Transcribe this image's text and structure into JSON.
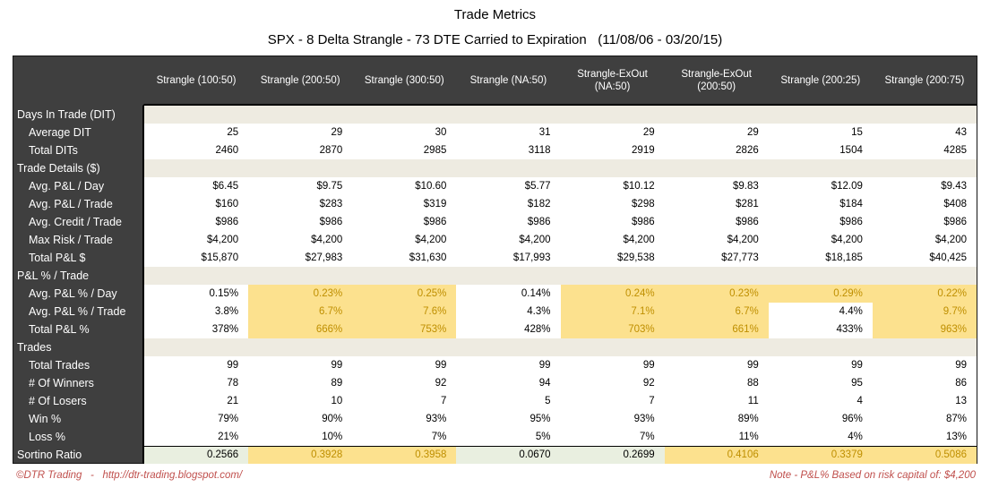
{
  "title": "Trade Metrics",
  "subtitle": "SPX - 8 Delta Strangle - 73 DTE Carried to Expiration   (11/08/06 - 03/20/15)",
  "columns": [
    "Strangle (100:50)",
    "Strangle (200:50)",
    "Strangle (300:50)",
    "Strangle (NA:50)",
    "Strangle-ExOut (NA:50)",
    "Strangle-ExOut (200:50)",
    "Strangle (200:25)",
    "Strangle (200:75)"
  ],
  "rows": [
    {
      "type": "section",
      "label": "Days In Trade (DIT)"
    },
    {
      "type": "data",
      "label": "Average DIT",
      "values": [
        "25",
        "29",
        "30",
        "31",
        "29",
        "29",
        "15",
        "43"
      ]
    },
    {
      "type": "data",
      "label": "Total DITs",
      "values": [
        "2460",
        "2870",
        "2985",
        "3118",
        "2919",
        "2826",
        "1504",
        "4285"
      ]
    },
    {
      "type": "section",
      "label": "Trade Details ($)"
    },
    {
      "type": "data",
      "label": "Avg. P&L / Day",
      "values": [
        "$6.45",
        "$9.75",
        "$10.60",
        "$5.77",
        "$10.12",
        "$9.83",
        "$12.09",
        "$9.43"
      ]
    },
    {
      "type": "data",
      "label": "Avg. P&L / Trade",
      "values": [
        "$160",
        "$283",
        "$319",
        "$182",
        "$298",
        "$281",
        "$184",
        "$408"
      ]
    },
    {
      "type": "data",
      "label": "Avg. Credit / Trade",
      "values": [
        "$986",
        "$986",
        "$986",
        "$986",
        "$986",
        "$986",
        "$986",
        "$986"
      ]
    },
    {
      "type": "data",
      "label": "Max Risk / Trade",
      "values": [
        "$4,200",
        "$4,200",
        "$4,200",
        "$4,200",
        "$4,200",
        "$4,200",
        "$4,200",
        "$4,200"
      ]
    },
    {
      "type": "data",
      "label": "Total P&L $",
      "values": [
        "$15,870",
        "$27,983",
        "$31,630",
        "$17,993",
        "$29,538",
        "$27,773",
        "$18,185",
        "$40,425"
      ]
    },
    {
      "type": "section",
      "label": "P&L % / Trade"
    },
    {
      "type": "data",
      "label": "Avg. P&L % / Day",
      "values": [
        "0.15%",
        "0.23%",
        "0.25%",
        "0.14%",
        "0.24%",
        "0.23%",
        "0.29%",
        "0.22%"
      ],
      "styles": [
        "p",
        "y",
        "y",
        "p",
        "y",
        "y",
        "y",
        "y"
      ]
    },
    {
      "type": "data",
      "label": "Avg. P&L % / Trade",
      "values": [
        "3.8%",
        "6.7%",
        "7.6%",
        "4.3%",
        "7.1%",
        "6.7%",
        "4.4%",
        "9.7%"
      ],
      "styles": [
        "p",
        "y",
        "y",
        "p",
        "y",
        "y",
        "p",
        "y"
      ]
    },
    {
      "type": "data",
      "label": "Total P&L %",
      "values": [
        "378%",
        "666%",
        "753%",
        "428%",
        "703%",
        "661%",
        "433%",
        "963%"
      ],
      "styles": [
        "p",
        "y",
        "y",
        "p",
        "y",
        "y",
        "p",
        "y"
      ]
    },
    {
      "type": "section",
      "label": "Trades"
    },
    {
      "type": "data",
      "label": "Total Trades",
      "values": [
        "99",
        "99",
        "99",
        "99",
        "99",
        "99",
        "99",
        "99"
      ]
    },
    {
      "type": "data",
      "label": "# Of Winners",
      "values": [
        "78",
        "89",
        "92",
        "94",
        "92",
        "88",
        "95",
        "86"
      ]
    },
    {
      "type": "data",
      "label": "# Of Losers",
      "values": [
        "21",
        "10",
        "7",
        "5",
        "7",
        "11",
        "4",
        "13"
      ]
    },
    {
      "type": "data",
      "label": "Win %",
      "values": [
        "79%",
        "90%",
        "93%",
        "95%",
        "93%",
        "89%",
        "96%",
        "87%"
      ]
    },
    {
      "type": "data",
      "label": "Loss %",
      "values": [
        "21%",
        "10%",
        "7%",
        "5%",
        "7%",
        "11%",
        "4%",
        "13%"
      ]
    },
    {
      "type": "sortino",
      "label": "Sortino Ratio",
      "values": [
        "0.2566",
        "0.3928",
        "0.3958",
        "0.0670",
        "0.2699",
        "0.4106",
        "0.3379",
        "0.5086"
      ],
      "styles": [
        "g",
        "y",
        "y",
        "g",
        "g",
        "y",
        "y",
        "y"
      ]
    }
  ],
  "footer": {
    "credit": "©DTR Trading   -   http://dtr-trading.blogspot.com/",
    "note": "Note - P&L% Based on risk capital of: $4,200"
  },
  "colors": {
    "header_bg": "#3f3f3f",
    "section_bg": "#eeebe1",
    "highlight_bg": "#fce18e",
    "highlight_text": "#bf8f00",
    "sortino_bg": "#e9efe0",
    "footer_text": "#c0504d"
  }
}
